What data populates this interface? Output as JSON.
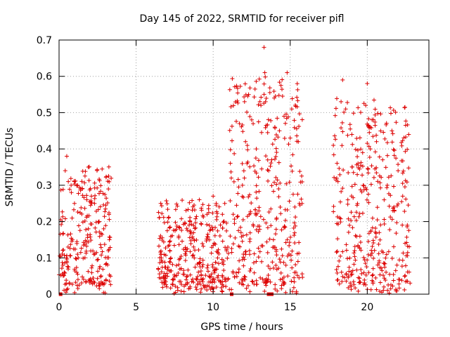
{
  "chart_data": {
    "type": "scatter",
    "title": "Day 145 of 2022, SRMTID for receiver pifl",
    "xlabel": "GPS time / hours",
    "ylabel": "SRMTID / TECUs",
    "xlim": [
      0,
      24
    ],
    "ylim": [
      0,
      0.7
    ],
    "xticks": [
      0,
      5,
      10,
      15,
      20
    ],
    "xtick_labels": [
      "0",
      "5",
      "10",
      "15",
      "20"
    ],
    "yticks": [
      0,
      0.1,
      0.2,
      0.3,
      0.4,
      0.5,
      0.6,
      0.7
    ],
    "ytick_labels": [
      "0",
      "0.1",
      "0.2",
      "0.3",
      "0.4",
      "0.5",
      "0.6",
      "0.7"
    ],
    "grid": true,
    "marker": "+",
    "color": "#dd0000",
    "series": [
      {
        "name": "SRMTID",
        "clusters": [
          {
            "x_range": [
              0.0,
              3.4
            ],
            "y_typical": [
              0.0,
              0.38
            ],
            "points": [
              [
                0.2,
                0.2
              ],
              [
                0.4,
                0.34
              ],
              [
                0.5,
                0.38
              ],
              [
                0.6,
                0.31
              ],
              [
                0.8,
                0.28
              ],
              [
                1.0,
                0.25
              ],
              [
                1.2,
                0.3
              ],
              [
                1.5,
                0.29
              ],
              [
                1.8,
                0.26
              ],
              [
                1.9,
                0.35
              ],
              [
                2.1,
                0.27
              ],
              [
                2.3,
                0.25
              ],
              [
                2.6,
                0.2
              ],
              [
                2.9,
                0.18
              ],
              [
                3.2,
                0.12
              ]
            ]
          },
          {
            "x_range": [
              6.4,
              11.0
            ],
            "y_typical": [
              0.0,
              0.27
            ],
            "points": [
              [
                6.6,
                0.25
              ],
              [
                7.1,
                0.21
              ],
              [
                8.5,
                0.2
              ],
              [
                9.1,
                0.26
              ],
              [
                9.6,
                0.22
              ],
              [
                10.0,
                0.27
              ],
              [
                10.2,
                0.25
              ],
              [
                10.6,
                0.22
              ]
            ]
          },
          {
            "x_range": [
              11.0,
              15.8
            ],
            "y_typical": [
              0.0,
              0.68
            ],
            "points": [
              [
                11.3,
                0.22
              ],
              [
                11.9,
                0.3
              ],
              [
                12.1,
                0.42
              ],
              [
                12.3,
                0.55
              ],
              [
                12.5,
                0.48
              ],
              [
                12.8,
                0.4
              ],
              [
                13.1,
                0.52
              ],
              [
                13.3,
                0.68
              ],
              [
                13.35,
                0.61
              ],
              [
                13.4,
                0.53
              ],
              [
                13.6,
                0.34
              ],
              [
                13.8,
                0.37
              ],
              [
                14.0,
                0.46
              ],
              [
                14.3,
                0.45
              ],
              [
                14.6,
                0.49
              ],
              [
                14.8,
                0.61
              ],
              [
                15.0,
                0.43
              ],
              [
                15.3,
                0.24
              ],
              [
                15.6,
                0.25
              ]
            ]
          },
          {
            "x_range": [
              17.8,
              22.8
            ],
            "y_typical": [
              0.0,
              0.59
            ],
            "points": [
              [
                17.8,
                0.41
              ],
              [
                18.1,
                0.31
              ],
              [
                18.3,
                0.53
              ],
              [
                18.4,
                0.59
              ],
              [
                18.6,
                0.51
              ],
              [
                19.0,
                0.44
              ],
              [
                19.4,
                0.36
              ],
              [
                19.7,
                0.39
              ],
              [
                19.9,
                0.52
              ],
              [
                20.0,
                0.58
              ],
              [
                20.2,
                0.4
              ],
              [
                20.6,
                0.42
              ],
              [
                21.0,
                0.37
              ],
              [
                21.3,
                0.3
              ],
              [
                21.6,
                0.45
              ],
              [
                22.0,
                0.34
              ],
              [
                22.3,
                0.27
              ],
              [
                22.6,
                0.19
              ]
            ]
          }
        ],
        "near_zero_markers_x": [
          0.1,
          11.2,
          13.6,
          13.8
        ]
      }
    ]
  }
}
